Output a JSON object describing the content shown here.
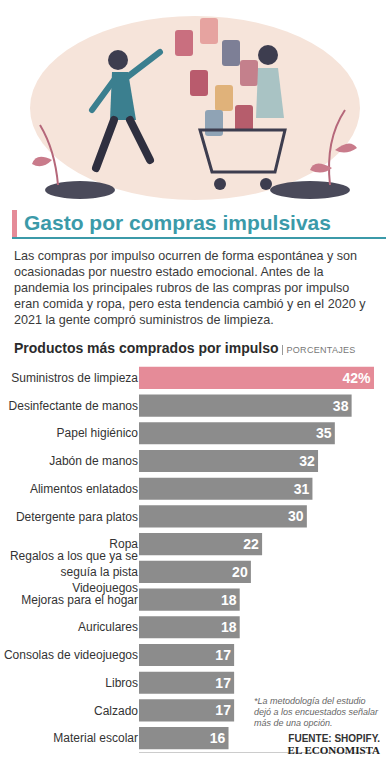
{
  "header": {
    "title": "Gasto por compras impulsivas",
    "text": "Las compras por impulso ocurren de forma espontánea y son ocasionadas por nuestro estado emocional. Antes de la pandemia los principales rubros de las compras por impulso eran comida y ropa, pero esta tendencia cambió y en el 2020 y 2021 la gente compró suministros de limpieza."
  },
  "chart_data": {
    "type": "bar",
    "title": "Productos más comprados por impulso",
    "subtitle": "PORCENTAJES",
    "orientation": "horizontal",
    "categories": [
      "Suministros de limpieza",
      "Desinfectante de manos",
      "Papel higiénico",
      "Jabón de manos",
      "Alimentos enlatados",
      "Detergente para platos",
      "Ropa",
      "Regalos a los que ya se seguía la pista Videojuegos",
      "Mejoras para el hogar",
      "Auriculares",
      "Consolas de videojuegos",
      "Libros",
      "Calzado",
      "Material escolar"
    ],
    "values": [
      42,
      38,
      35,
      32,
      31,
      30,
      22,
      20,
      18,
      18,
      17,
      17,
      17,
      16
    ],
    "value_labels": [
      "42%",
      "38",
      "35",
      "32",
      "31",
      "30",
      "22",
      "20",
      "18",
      "18",
      "17",
      "17",
      "17",
      "16"
    ],
    "colors": [
      "#e58b98",
      "#8c8c8c",
      "#8c8c8c",
      "#8c8c8c",
      "#8c8c8c",
      "#8c8c8c",
      "#8c8c8c",
      "#8c8c8c",
      "#8c8c8c",
      "#8c8c8c",
      "#8c8c8c",
      "#8c8c8c",
      "#8c8c8c",
      "#8c8c8c"
    ],
    "data_labels": true,
    "tick_labels": "y",
    "grid": false,
    "xlim": [
      0,
      42
    ],
    "xticks": []
  },
  "footer": {
    "note": "*La metodología del estudio dejó a los encuestados señalar más de una opción.",
    "source": "FUENTE: SHOPIFY.",
    "publisher": "EL ECONOMISTA"
  }
}
